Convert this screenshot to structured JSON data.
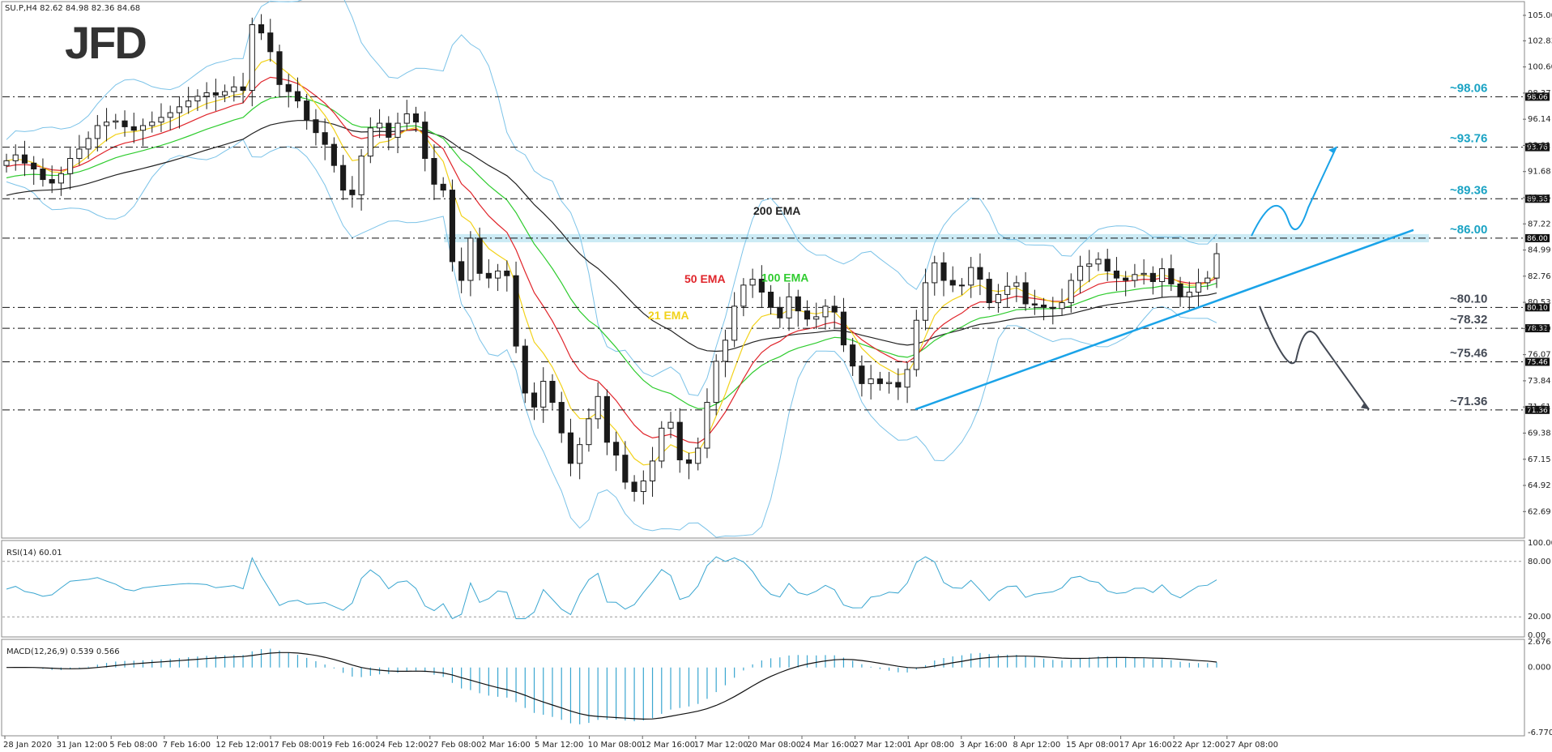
{
  "header": {
    "symbol_line": "SU.P,H4  82.62 84.98 82.36 84.68",
    "logo": "JFD"
  },
  "colors": {
    "level_blue": "#1aa3c4",
    "level_dark": "#444a55",
    "ema21": "#f2d21b",
    "ema50": "#e0252b",
    "ema100": "#2fcc2f",
    "ema200": "#222222",
    "bollinger": "#7cc3e8",
    "candles": "#1a1a1a",
    "indicator": "#3aa6d0",
    "trendline": "#1aa3e8",
    "zone": "#bfe6f2"
  },
  "chart_data": [
    {
      "type": "candlestick",
      "title": "SU.P,H4",
      "ohlc_last": {
        "open": 82.62,
        "high": 84.98,
        "low": 82.36,
        "close": 84.68
      },
      "y_ticks": [
        105.0,
        102.83,
        100.6,
        98.37,
        96.14,
        93.91,
        91.68,
        89.45,
        87.22,
        84.99,
        82.76,
        80.53,
        78.3,
        76.07,
        73.84,
        71.61,
        69.38,
        67.15,
        64.92,
        62.69
      ],
      "y_ticks_display": [
        "105.00",
        "102.83",
        "100.60",
        "98.37",
        "96.14",
        "93.91",
        "91.68",
        "89.45",
        "87.22",
        "84.99",
        "82.76",
        "80.53",
        "78.30",
        "76.07",
        "73.84",
        "71.61",
        "69.38",
        "67.15",
        "64.92",
        "62.69"
      ],
      "ylim": [
        60.5,
        106.1
      ],
      "x_tick_labels": [
        "28 Jan 2020",
        "31 Jan 12:00",
        "5 Feb 08:00",
        "7 Feb 16:00",
        "12 Feb 12:00",
        "17 Feb 08:00",
        "19 Feb 16:00",
        "24 Feb 12:00",
        "27 Feb 08:00",
        "2 Mar 16:00",
        "5 Mar 12:00",
        "10 Mar 08:00",
        "12 Mar 16:00",
        "17 Mar 12:00",
        "20 Mar 08:00",
        "24 Mar 16:00",
        "27 Mar 12:00",
        "1 Apr 08:00",
        "3 Apr 16:00",
        "8 Apr 12:00",
        "15 Apr 08:00",
        "17 Apr 16:00",
        "22 Apr 12:00",
        "27 Apr 08:00"
      ],
      "levels": [
        {
          "label": "~98.06",
          "value": 98.06,
          "box": "98.06",
          "color": "#1aa3c4"
        },
        {
          "label": "~93.76",
          "value": 93.76,
          "box": "93.76",
          "color": "#1aa3c4"
        },
        {
          "label": "~89.36",
          "value": 89.36,
          "box": "89.36",
          "color": "#1aa3c4"
        },
        {
          "label": "~86.00",
          "value": 86.0,
          "box": "86.00",
          "color": "#1aa3c4"
        },
        {
          "label": "~80.10",
          "value": 80.1,
          "box": "80.10",
          "color": "#444a55"
        },
        {
          "label": "~78.32",
          "value": 78.32,
          "box": "78.32",
          "color": "#444a55"
        },
        {
          "label": "~75.46",
          "value": 75.46,
          "box": "75.46",
          "color": "#444a55"
        },
        {
          "label": "~71.36",
          "value": 71.36,
          "box": "71.36",
          "color": "#444a55"
        }
      ],
      "ema_labels": {
        "ema200": "200 EMA",
        "ema100": "100 EMA",
        "ema50": "50 EMA",
        "ema21": "21 EMA"
      },
      "close_series": [
        92.6,
        93.1,
        92.4,
        91.9,
        91.0,
        90.7,
        91.5,
        92.8,
        93.6,
        94.5,
        95.6,
        95.9,
        96.0,
        95.5,
        95.2,
        95.6,
        95.9,
        96.3,
        96.7,
        97.2,
        97.7,
        98.1,
        98.4,
        98.2,
        98.5,
        98.9,
        98.6,
        104.2,
        103.5,
        101.9,
        99.1,
        98.5,
        97.7,
        96.1,
        95.0,
        94.0,
        92.2,
        90.1,
        89.7,
        93.0,
        95.4,
        95.8,
        94.6,
        95.8,
        96.6,
        95.9,
        92.8,
        90.6,
        90.1,
        84.0,
        82.4,
        86.0,
        83.0,
        82.6,
        83.2,
        82.8,
        76.8,
        72.8,
        71.6,
        73.8,
        72.0,
        69.4,
        66.8,
        68.4,
        70.6,
        72.5,
        68.6,
        67.5,
        65.2,
        64.4,
        65.3,
        67.0,
        69.8,
        70.3,
        67.1,
        66.8,
        68.1,
        72.0,
        75.5,
        77.3,
        80.2,
        82.0,
        82.5,
        81.4,
        80.1,
        79.2,
        81.0,
        79.8,
        79.1,
        79.3,
        80.2,
        79.7,
        76.9,
        75.1,
        73.6,
        74.0,
        73.6,
        73.7,
        73.3,
        74.8,
        79.0,
        82.2,
        83.9,
        82.4,
        82.0,
        82.0,
        83.5,
        82.5,
        80.5,
        81.2,
        81.9,
        82.2,
        80.4,
        80.3,
        80.1,
        80.0,
        80.5,
        82.4,
        83.6,
        83.8,
        84.2,
        83.2,
        82.6,
        82.4,
        82.9,
        83.0,
        82.3,
        83.4,
        82.1,
        81.0,
        81.4,
        82.2,
        82.6,
        84.68
      ],
      "rsi": {
        "label": "RSI(14) 60.01",
        "value": 60.01,
        "ylim": [
          0,
          100
        ],
        "ticks": [
          "100.00",
          "80.00",
          "20.00",
          "0.00"
        ]
      },
      "macd": {
        "label": "MACD(12,26,9) 0.539 0.566",
        "macd": 0.539,
        "signal": 0.566,
        "ylim": [
          -6.77,
          2.676
        ],
        "ticks": [
          "2.676",
          "0.000",
          "-6.770"
        ]
      }
    }
  ]
}
